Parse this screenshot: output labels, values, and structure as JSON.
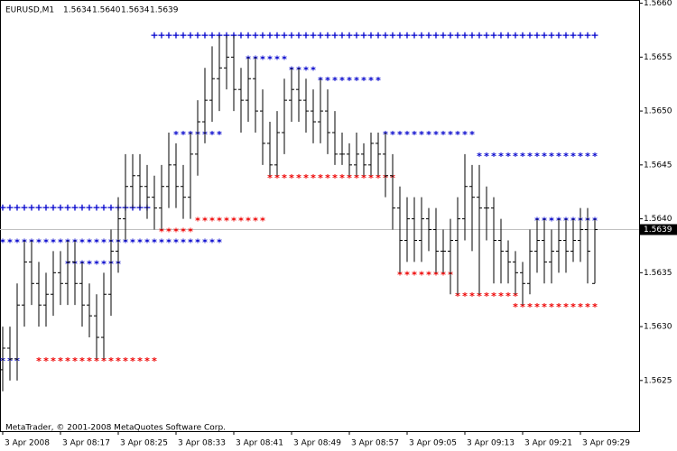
{
  "chart_data": {
    "type": "ohlc",
    "title": "EURUSD,M1",
    "header_values": [
      "1.5634",
      "1.5640",
      "1.5634",
      "1.5639"
    ],
    "footer": "MetaTrader, © 2001-2008 MetaQuotes Software Corp.",
    "categories": [
      "3 Apr 2008",
      null,
      null,
      null,
      null,
      null,
      null,
      null,
      "3 Apr 08:17",
      null,
      null,
      null,
      null,
      null,
      null,
      null,
      "3 Apr 08:25",
      null,
      null,
      null,
      null,
      null,
      null,
      null,
      "3 Apr 08:33",
      null,
      null,
      null,
      null,
      null,
      null,
      null,
      "3 Apr 08:41",
      null,
      null,
      null,
      null,
      null,
      null,
      null,
      "3 Apr 08:49",
      null,
      null,
      null,
      null,
      null,
      null,
      null,
      "3 Apr 08:57",
      null,
      null,
      null,
      null,
      null,
      null,
      null,
      "3 Apr 09:05",
      null,
      null,
      null,
      null,
      null,
      null,
      null,
      "3 Apr 09:13",
      null,
      null,
      null,
      null,
      null,
      null,
      null,
      "3 Apr 09:21",
      null,
      null,
      null,
      null,
      null,
      null,
      null,
      "3 Apr 09:29",
      null,
      null
    ],
    "open": [
      1.5626,
      1.5628,
      1.5627,
      1.5632,
      1.5636,
      1.5634,
      1.5632,
      1.5633,
      1.5635,
      1.5634,
      1.5636,
      1.5634,
      1.5632,
      1.5631,
      1.5629,
      1.5633,
      1.5637,
      1.564,
      1.5643,
      1.5644,
      1.5643,
      1.5642,
      1.5641,
      1.5643,
      1.5645,
      1.5643,
      1.5642,
      1.5646,
      1.5649,
      1.5651,
      1.5653,
      1.5654,
      1.5655,
      1.5652,
      1.5651,
      1.5653,
      1.565,
      1.5647,
      1.5645,
      1.5648,
      1.5651,
      1.5652,
      1.5651,
      1.565,
      1.5649,
      1.565,
      1.5648,
      1.5646,
      1.5646,
      1.5645,
      1.5646,
      1.5645,
      1.5647,
      1.5646,
      1.5644,
      1.5641,
      1.5638,
      1.564,
      1.5638,
      1.564,
      1.5639,
      1.5637,
      1.5637,
      1.5638,
      1.564,
      1.5643,
      1.5642,
      1.5641,
      1.5641,
      1.5638,
      1.5637,
      1.5636,
      1.5635,
      1.5634,
      1.5637,
      1.5638,
      1.5636,
      1.5637,
      1.5638,
      1.5637,
      1.5638,
      1.5639,
      1.5634
    ],
    "high": [
      1.563,
      1.563,
      1.5634,
      1.5638,
      1.5638,
      1.5636,
      1.5635,
      1.5637,
      1.5637,
      1.5638,
      1.5638,
      1.5636,
      1.5634,
      1.5633,
      1.5635,
      1.5639,
      1.5642,
      1.5646,
      1.5646,
      1.5646,
      1.5645,
      1.5644,
      1.5645,
      1.5648,
      1.5647,
      1.5645,
      1.5648,
      1.5651,
      1.5654,
      1.5656,
      1.5657,
      1.5657,
      1.5657,
      1.5654,
      1.5655,
      1.5655,
      1.5652,
      1.5649,
      1.565,
      1.5653,
      1.5654,
      1.5654,
      1.5653,
      1.5652,
      1.5653,
      1.5652,
      1.565,
      1.5648,
      1.5647,
      1.5648,
      1.5647,
      1.5648,
      1.5648,
      1.5648,
      1.5646,
      1.5643,
      1.5642,
      1.5642,
      1.5642,
      1.5641,
      1.5641,
      1.5639,
      1.564,
      1.5642,
      1.5646,
      1.5645,
      1.5645,
      1.5643,
      1.5642,
      1.564,
      1.5638,
      1.5637,
      1.5636,
      1.5639,
      1.564,
      1.564,
      1.5639,
      1.564,
      1.564,
      1.564,
      1.5641,
      1.5641,
      1.564
    ],
    "low": [
      1.5624,
      1.5625,
      1.5625,
      1.563,
      1.5632,
      1.563,
      1.563,
      1.5631,
      1.5632,
      1.5632,
      1.5632,
      1.563,
      1.5629,
      1.5627,
      1.5627,
      1.5631,
      1.5635,
      1.5638,
      1.5641,
      1.5641,
      1.564,
      1.5639,
      1.5639,
      1.5641,
      1.5641,
      1.564,
      1.564,
      1.5644,
      1.5647,
      1.5649,
      1.565,
      1.5652,
      1.565,
      1.5648,
      1.5649,
      1.5648,
      1.5645,
      1.5644,
      1.5644,
      1.5646,
      1.5649,
      1.5649,
      1.5648,
      1.5647,
      1.5647,
      1.5646,
      1.5645,
      1.5645,
      1.5644,
      1.5644,
      1.5644,
      1.5644,
      1.5644,
      1.5642,
      1.5639,
      1.5635,
      1.5636,
      1.5636,
      1.5636,
      1.5637,
      1.5635,
      1.5635,
      1.5633,
      1.5633,
      1.5638,
      1.5637,
      1.5633,
      1.5638,
      1.5634,
      1.5634,
      1.5634,
      1.5633,
      1.5632,
      1.5633,
      1.5635,
      1.5634,
      1.5634,
      1.5635,
      1.5635,
      1.5636,
      1.5636,
      1.5634,
      1.5634
    ],
    "close": [
      1.5628,
      1.5627,
      1.5632,
      1.5636,
      1.5634,
      1.5632,
      1.5633,
      1.5635,
      1.5634,
      1.5636,
      1.5634,
      1.5632,
      1.5631,
      1.5629,
      1.5633,
      1.5637,
      1.564,
      1.5643,
      1.5644,
      1.5643,
      1.5642,
      1.5641,
      1.5643,
      1.5645,
      1.5643,
      1.5642,
      1.5646,
      1.5649,
      1.5651,
      1.5653,
      1.5654,
      1.5655,
      1.5652,
      1.5651,
      1.5653,
      1.565,
      1.5647,
      1.5645,
      1.5648,
      1.5651,
      1.5652,
      1.5651,
      1.565,
      1.5649,
      1.565,
      1.5648,
      1.5646,
      1.5646,
      1.5645,
      1.5646,
      1.5645,
      1.5647,
      1.5646,
      1.5644,
      1.5641,
      1.5638,
      1.564,
      1.5638,
      1.564,
      1.5639,
      1.5637,
      1.5637,
      1.5638,
      1.564,
      1.5643,
      1.5642,
      1.5641,
      1.5641,
      1.5638,
      1.5637,
      1.5636,
      1.5635,
      1.5634,
      1.5637,
      1.5638,
      1.5636,
      1.5637,
      1.5638,
      1.5637,
      1.5638,
      1.5639,
      1.5637,
      1.5639
    ],
    "color": "#000000",
    "last_price": 1.5639,
    "levels": [
      {
        "price": 1.5641,
        "from": 0,
        "to": 20,
        "marker": "+",
        "color": "#0000cc"
      },
      {
        "price": 1.5638,
        "from": 0,
        "to": 30,
        "marker": "*",
        "color": "#0000cc"
      },
      {
        "price": 1.5636,
        "from": 9,
        "to": 16,
        "marker": "*",
        "color": "#0000cc"
      },
      {
        "price": 1.5627,
        "from": 0,
        "to": 2,
        "marker": "*",
        "color": "#0000cc"
      },
      {
        "price": 1.5657,
        "from": 21,
        "to": 82,
        "marker": "+",
        "color": "#0000cc"
      },
      {
        "price": 1.5648,
        "from": 24,
        "to": 30,
        "marker": "*",
        "color": "#0000cc"
      },
      {
        "price": 1.5655,
        "from": 34,
        "to": 39,
        "marker": "*",
        "color": "#0000cc"
      },
      {
        "price": 1.5654,
        "from": 40,
        "to": 43,
        "marker": "*",
        "color": "#0000cc"
      },
      {
        "price": 1.5653,
        "from": 44,
        "to": 52,
        "marker": "*",
        "color": "#0000cc"
      },
      {
        "price": 1.5648,
        "from": 53,
        "to": 65,
        "marker": "*",
        "color": "#0000cc"
      },
      {
        "price": 1.5646,
        "from": 66,
        "to": 82,
        "marker": "*",
        "color": "#0000cc"
      },
      {
        "price": 1.564,
        "from": 74,
        "to": 82,
        "marker": "*",
        "color": "#0000cc"
      },
      {
        "price": 1.5627,
        "from": 5,
        "to": 21,
        "marker": "*",
        "color": "#ee0000"
      },
      {
        "price": 1.5639,
        "from": 22,
        "to": 26,
        "marker": "*",
        "color": "#ee0000"
      },
      {
        "price": 1.564,
        "from": 27,
        "to": 36,
        "marker": "*",
        "color": "#ee0000"
      },
      {
        "price": 1.5644,
        "from": 37,
        "to": 54,
        "marker": "*",
        "color": "#ee0000"
      },
      {
        "price": 1.5635,
        "from": 55,
        "to": 62,
        "marker": "*",
        "color": "#ee0000"
      },
      {
        "price": 1.5633,
        "from": 63,
        "to": 71,
        "marker": "*",
        "color": "#ee0000"
      },
      {
        "price": 1.5632,
        "from": 71,
        "to": 82,
        "marker": "*",
        "color": "#ee0000"
      }
    ],
    "ylim": [
      1.56203,
      1.56603
    ],
    "yticks": [
      1.5625,
      {
        "value": 1.563,
        "label": "1.5630"
      },
      1.5635,
      {
        "value": 1.564,
        "label": "1.5640"
      },
      1.5645,
      {
        "value": 1.565,
        "label": "1.5650"
      },
      1.5655,
      {
        "value": 1.566,
        "label": "1.5660"
      }
    ]
  }
}
